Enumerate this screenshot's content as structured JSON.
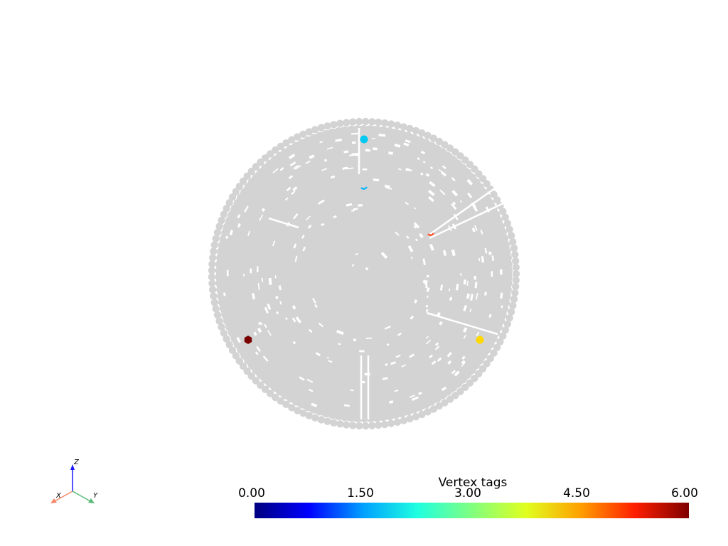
{
  "colorbar": {
    "title": "Vertex tags",
    "min": 0.0,
    "max": 6.0,
    "ticks": [
      "0.00",
      "1.50",
      "3.00",
      "4.50",
      "6.00"
    ],
    "colormap": "jet",
    "colors": [
      "#00007f",
      "#0000ff",
      "#00a0ff",
      "#1fffe0",
      "#80ff80",
      "#e0ff1f",
      "#ffa000",
      "#ff1f00",
      "#7f0000"
    ]
  },
  "mesh": {
    "base_color": "#d3d3d3",
    "description_shape": "sphere point cloud",
    "tagged_vertices": [
      {
        "tag": 2,
        "color": "#00c8f0",
        "kind": "dot"
      },
      {
        "tag": 2,
        "color": "#00b4ff",
        "kind": "mark"
      },
      {
        "tag": 5,
        "color": "#ff4a1a",
        "kind": "mark"
      },
      {
        "tag": 4,
        "color": "#ffd800",
        "kind": "dot"
      },
      {
        "tag": 6,
        "color": "#7a0000",
        "kind": "hex"
      }
    ]
  },
  "axes": {
    "x_label": "X",
    "y_label": "Y",
    "z_label": "Z",
    "x_color": "#f4876a",
    "y_color": "#55bb77",
    "z_color": "#1a1aff"
  }
}
